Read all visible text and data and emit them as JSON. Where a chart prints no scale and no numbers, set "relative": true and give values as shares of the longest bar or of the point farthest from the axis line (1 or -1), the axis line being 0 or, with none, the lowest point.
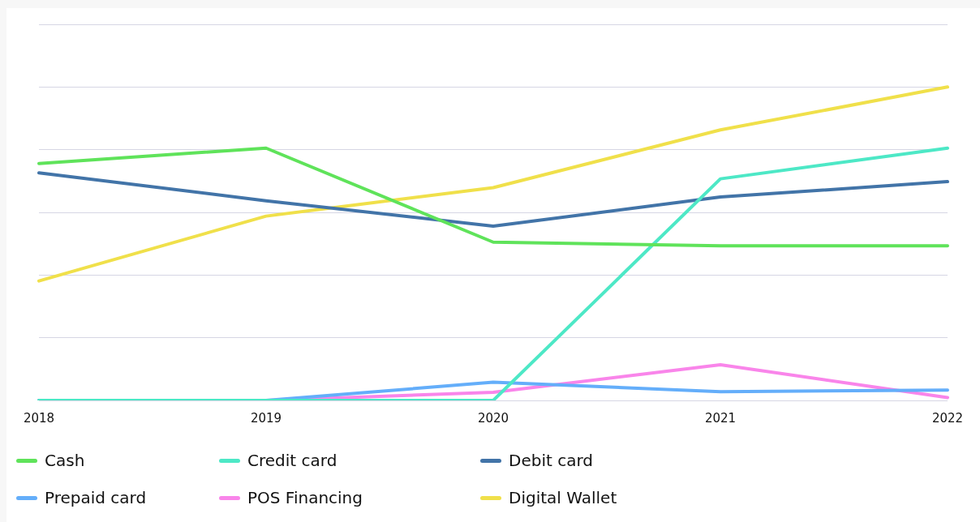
{
  "chart_data": {
    "type": "line",
    "relative": true,
    "categories": [
      "2018",
      "2019",
      "2020",
      "2021",
      "2022"
    ],
    "grid": "y",
    "legend": "bottom",
    "marker": "none",
    "line_style": "solid",
    "series": [
      {
        "name": "Cash",
        "color": "#5fe35a",
        "values": [
          0.756,
          0.805,
          0.505,
          0.493,
          0.493
        ]
      },
      {
        "name": "Credit card",
        "color": "#4de8c6",
        "values": [
          0,
          0,
          0,
          0.707,
          0.805
        ]
      },
      {
        "name": "Debit card",
        "color": "#4274a8",
        "values": [
          0.726,
          0.637,
          0.556,
          0.649,
          0.698
        ]
      },
      {
        "name": "Prepaid card",
        "color": "#64aefa",
        "values": [
          0,
          0,
          0.058,
          0.028,
          0.033
        ]
      },
      {
        "name": "POS Financing",
        "color": "#f985ea",
        "values": [
          0,
          0,
          0.026,
          0.114,
          0.009
        ]
      },
      {
        "name": "Digital Wallet",
        "color": "#f0e04a",
        "values": [
          0.381,
          0.588,
          0.679,
          0.863,
          1
        ]
      }
    ]
  }
}
